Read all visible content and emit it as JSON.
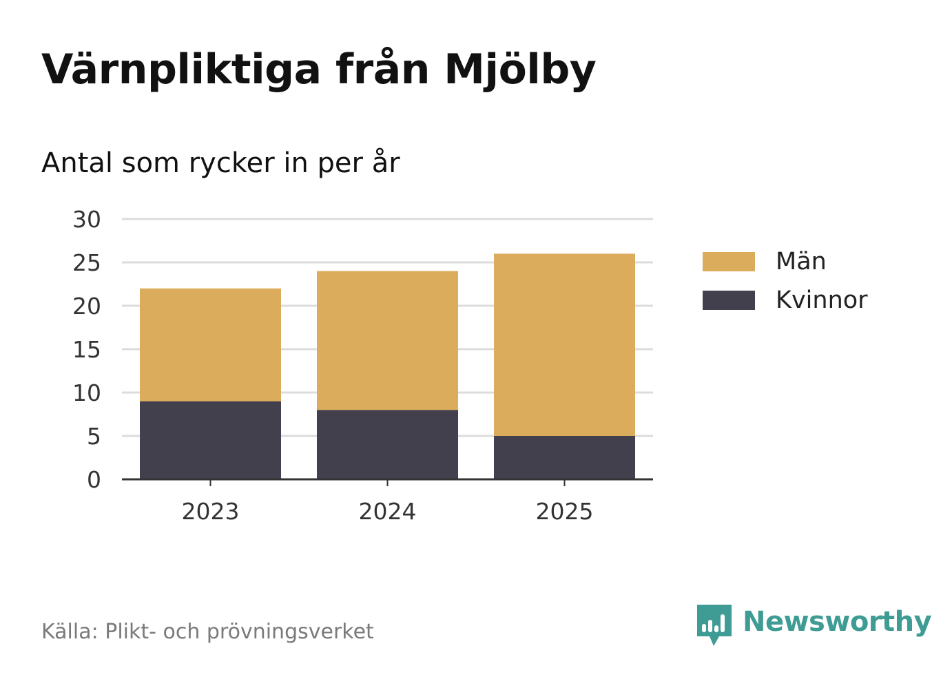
{
  "title": "Värnpliktiga från Mjölby",
  "subtitle": "Antal som rycker in per år",
  "source": "Källa: Plikt- och prövningsverket",
  "brand": {
    "name": "Newsworthy",
    "icon": "newsworthy-logo-icon",
    "color": "#3f9c94"
  },
  "chart_data": {
    "type": "bar",
    "stacked": true,
    "categories": [
      "2023",
      "2024",
      "2025"
    ],
    "series": [
      {
        "name": "Kvinnor",
        "values": [
          9,
          8,
          5
        ],
        "color": "#43404e"
      },
      {
        "name": "Män",
        "values": [
          13,
          16,
          21
        ],
        "color": "#dbac5b"
      }
    ],
    "ylim": [
      0,
      30
    ],
    "yticks": [
      0,
      5,
      10,
      15,
      20,
      25,
      30
    ],
    "grid": true,
    "legend_position": "right",
    "legend_order": [
      "Män",
      "Kvinnor"
    ]
  }
}
